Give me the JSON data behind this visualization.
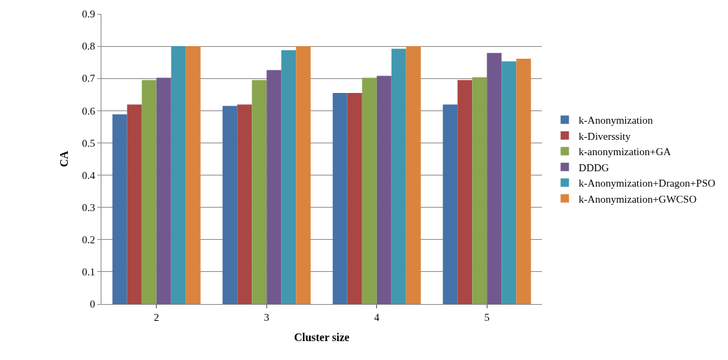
{
  "chart_data": {
    "type": "bar",
    "xlabel": "Cluster size",
    "ylabel": "CA",
    "categories": [
      "2",
      "3",
      "4",
      "5"
    ],
    "series": [
      {
        "name": "k-Anonymization",
        "color": "#4572a7",
        "values": [
          0.589,
          0.615,
          0.655,
          0.619
        ]
      },
      {
        "name": "k-Diverssity",
        "color": "#aa4643",
        "values": [
          0.619,
          0.619,
          0.655,
          0.695
        ]
      },
      {
        "name": "k-anonymization+GA",
        "color": "#89a54e",
        "values": [
          0.695,
          0.695,
          0.702,
          0.704
        ]
      },
      {
        "name": "DDDG",
        "color": "#71588f",
        "values": [
          0.702,
          0.726,
          0.708,
          0.779
        ]
      },
      {
        "name": "k-Anonymization+Dragon+PSO",
        "color": "#4198af",
        "values": [
          0.8,
          0.788,
          0.792,
          0.753
        ]
      },
      {
        "name": "k-Anonymization+GWCSO",
        "color": "#db843d",
        "values": [
          0.8,
          0.8,
          0.8,
          0.761
        ]
      }
    ],
    "ylim": [
      0,
      0.9
    ],
    "yticks": [
      0,
      {
        "value": 0.1,
        "label": "0.1"
      },
      {
        "value": 0.2,
        "label": "0.2"
      },
      {
        "value": 0.3,
        "label": "0.3"
      },
      {
        "value": 0.4,
        "label": "0.4"
      },
      {
        "value": 0.5,
        "label": "0.5"
      },
      {
        "value": 0.6,
        "label": "0.6"
      },
      {
        "value": 0.7,
        "label": "0.7"
      },
      {
        "value": 0.8,
        "label": "0.8"
      },
      {
        "value": 0.9,
        "label": "0.9"
      }
    ],
    "grid": "y",
    "legend": "right"
  }
}
